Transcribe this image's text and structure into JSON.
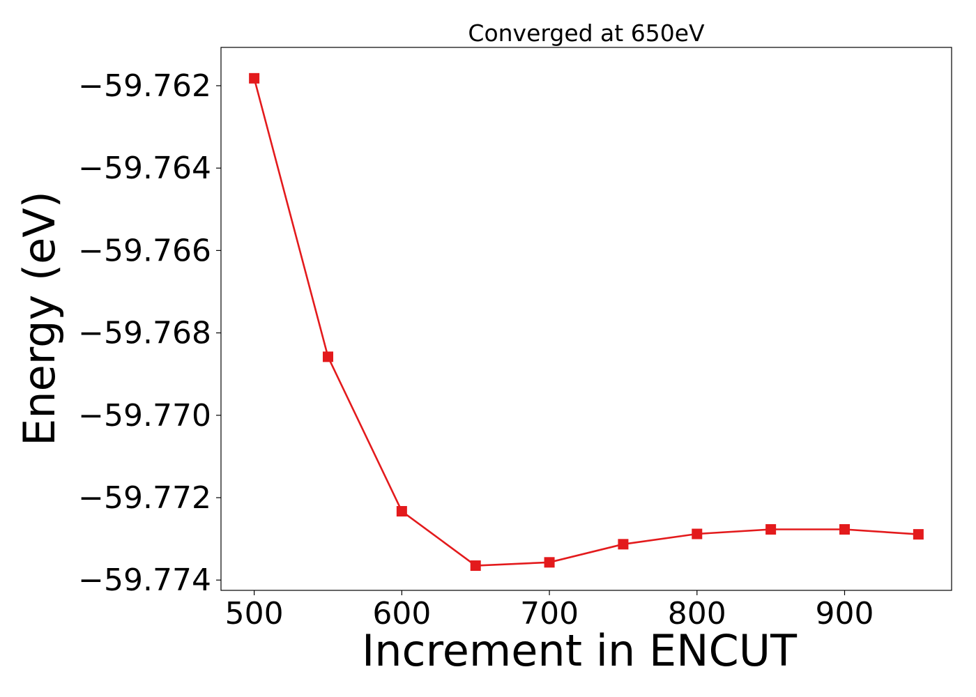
{
  "chart_data": {
    "type": "line",
    "title": "Converged at 650eV",
    "xlabel": "Increment in ENCUT",
    "ylabel": "Energy (eV)",
    "xlim": [
      477.5,
      972.5
    ],
    "ylim": [
      -59.77425,
      -59.76107
    ],
    "xticks": [
      500,
      600,
      700,
      800,
      900
    ],
    "xtick_labels": [
      "500",
      "600",
      "700",
      "800",
      "900"
    ],
    "yticks": [
      -59.762,
      -59.764,
      -59.766,
      -59.768,
      -59.77,
      -59.772,
      -59.774
    ],
    "ytick_labels": [
      "−59.762",
      "−59.764",
      "−59.766",
      "−59.768",
      "−59.770",
      "−59.772",
      "−59.774"
    ],
    "grid": false,
    "series": [
      {
        "color": "#e31a1c",
        "marker": "square",
        "x": [
          500,
          550,
          600,
          650,
          700,
          750,
          800,
          850,
          900,
          950
        ],
        "y": [
          -59.76182,
          -59.76858,
          -59.77233,
          -59.77365,
          -59.77357,
          -59.77313,
          -59.77288,
          -59.77277,
          -59.77277,
          -59.77289
        ]
      }
    ]
  }
}
